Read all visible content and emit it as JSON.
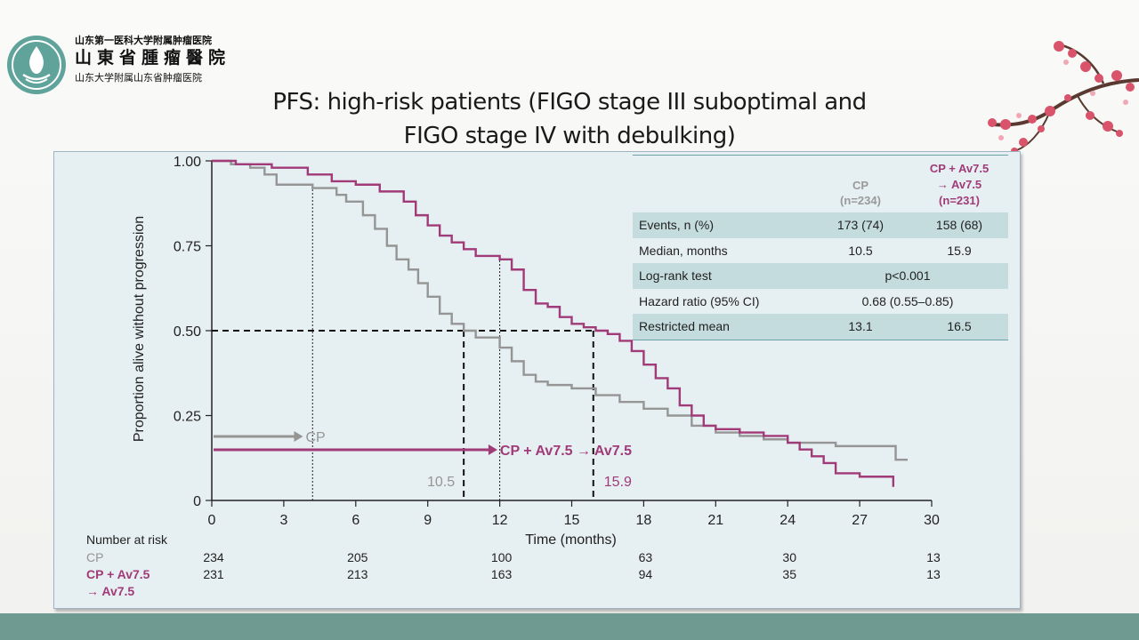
{
  "header": {
    "logo_line1": "山东第一医科大学附属肿瘤医院",
    "logo_line2": "山東省腫瘤醫院",
    "logo_line3": "山东大学附属山东省肿瘤医院",
    "title_line1": "PFS: high-risk patients (FIGO stage III suboptimal and",
    "title_line2": "FIGO stage IV with debulking)"
  },
  "colors": {
    "cp": "#959595",
    "cp_av": "#a03a78",
    "band": "#6f9a92",
    "panel": "#e6eff1",
    "table_shade": "#c5dcdf"
  },
  "chart_data": {
    "type": "line",
    "xlabel": "Time (months)",
    "ylabel": "Proportion alive without progression",
    "xlim": [
      0,
      30
    ],
    "ylim": [
      0,
      1
    ],
    "xticks": [
      "0",
      "3",
      "6",
      "9",
      "12",
      "15",
      "18",
      "21",
      "24",
      "27",
      "30"
    ],
    "yticks": [
      "0",
      "0.25",
      "0.50",
      "0.75",
      "1.00"
    ],
    "series": [
      {
        "name": "CP",
        "legend_label": "CP",
        "color": "#959595",
        "x": [
          0,
          0.8,
          1.6,
          2.2,
          2.7,
          3.2,
          4.2,
          5.2,
          5.6,
          6.3,
          6.8,
          7.3,
          7.7,
          8.2,
          8.6,
          9.0,
          9.5,
          10.0,
          10.5,
          11.0,
          12.0,
          12.5,
          13.0,
          13.5,
          14.0,
          15.0,
          16.0,
          17.0,
          18.0,
          19.0,
          20.0,
          21.0,
          22.0,
          23.0,
          24.0,
          25.0,
          26.0,
          27.0,
          28.0,
          28.5,
          29.0
        ],
        "y": [
          1.0,
          0.99,
          0.98,
          0.96,
          0.93,
          0.93,
          0.92,
          0.9,
          0.88,
          0.84,
          0.8,
          0.75,
          0.71,
          0.68,
          0.64,
          0.6,
          0.55,
          0.52,
          0.5,
          0.48,
          0.45,
          0.41,
          0.37,
          0.35,
          0.34,
          0.33,
          0.31,
          0.29,
          0.27,
          0.25,
          0.22,
          0.2,
          0.19,
          0.18,
          0.17,
          0.17,
          0.16,
          0.16,
          0.16,
          0.12,
          0.12
        ]
      },
      {
        "name": "CP + Av7.5 → Av7.5",
        "legend_label": "CP + Av7.5 → Av7.5",
        "color": "#a03a78",
        "x": [
          0,
          1.0,
          2.5,
          4.0,
          5.0,
          6.0,
          7.0,
          8.0,
          8.5,
          9.0,
          9.5,
          10.0,
          10.5,
          11.0,
          11.8,
          12.0,
          12.5,
          13.0,
          13.5,
          14.0,
          14.5,
          15.0,
          15.5,
          16.0,
          16.5,
          17.0,
          17.5,
          18.0,
          18.5,
          19.0,
          19.5,
          20.0,
          20.5,
          21.0,
          22.0,
          23.0,
          24.0,
          24.5,
          25.0,
          25.5,
          26.0,
          27.0,
          28.0,
          28.4
        ],
        "y": [
          1.0,
          0.99,
          0.98,
          0.96,
          0.94,
          0.93,
          0.91,
          0.88,
          0.84,
          0.81,
          0.78,
          0.76,
          0.74,
          0.72,
          0.72,
          0.71,
          0.68,
          0.62,
          0.58,
          0.57,
          0.54,
          0.52,
          0.51,
          0.5,
          0.49,
          0.47,
          0.44,
          0.4,
          0.36,
          0.33,
          0.28,
          0.25,
          0.22,
          0.21,
          0.2,
          0.19,
          0.17,
          0.15,
          0.13,
          0.11,
          0.08,
          0.07,
          0.07,
          0.04
        ]
      }
    ],
    "medians": [
      {
        "label": "10.5",
        "x": 10.5,
        "color": "#959595"
      },
      {
        "label": "15.9",
        "x": 15.9,
        "color": "#a03a78"
      }
    ],
    "quartile_marks": [
      4.2,
      12.0
    ],
    "risk_table": {
      "title": "Number at risk",
      "times": [
        0,
        6,
        12,
        18,
        24,
        30
      ],
      "rows": [
        {
          "label": "CP",
          "values": [
            "234",
            "205",
            "100",
            "63",
            "30",
            "13"
          ],
          "color": "#959595"
        },
        {
          "label": "CP + Av7.5",
          "label2": "→ Av7.5",
          "values": [
            "231",
            "213",
            "163",
            "94",
            "35",
            "13"
          ],
          "color": "#a03a78"
        }
      ]
    }
  },
  "stats_table": {
    "col1_label": "CP",
    "col1_n": "(n=234)",
    "col2_label": "CP + Av7.5",
    "col2_line2": "→ Av7.5",
    "col2_n": "(n=231)",
    "rows": [
      {
        "label": "Events, n (%)",
        "v1": "173 (74)",
        "v2": "158 (68)",
        "shaded": true
      },
      {
        "label": "Median, months",
        "v1": "10.5",
        "v2": "15.9",
        "shaded": false
      },
      {
        "label": "Log-rank test",
        "span": "p<0.001",
        "shaded": true
      },
      {
        "label": "Hazard ratio (95% CI)",
        "span": "0.68 (0.55–0.85)",
        "shaded": false
      },
      {
        "label": "Restricted mean",
        "v1": "13.1",
        "v2": "16.5",
        "shaded": true
      }
    ]
  }
}
